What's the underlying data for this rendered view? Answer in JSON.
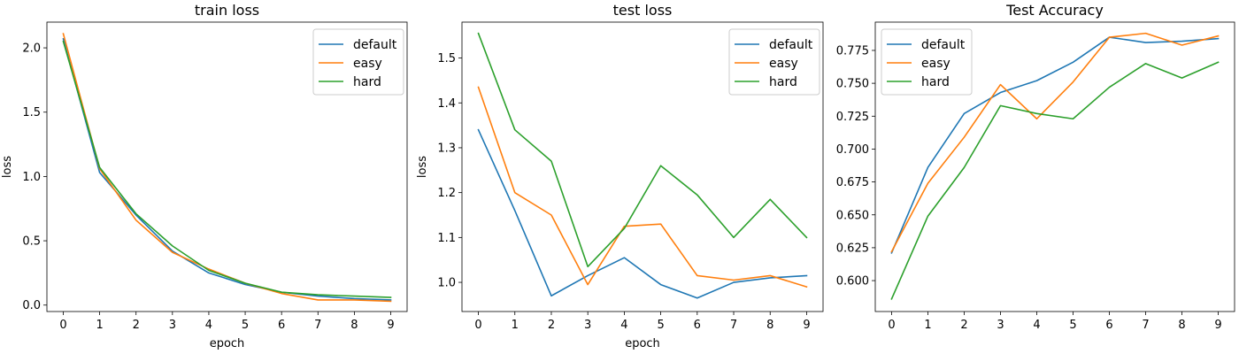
{
  "figure": {
    "colors": {
      "default": "#1f77b4",
      "easy": "#ff7f0e",
      "hard": "#2ca02c"
    }
  },
  "chart_data": [
    {
      "type": "line",
      "title": "train loss",
      "xlabel": "epoch",
      "ylabel": "loss",
      "x": [
        0,
        1,
        2,
        3,
        4,
        5,
        6,
        7,
        8,
        9
      ],
      "xlim": [
        -0.45,
        9.45
      ],
      "ylim": [
        -0.05,
        2.2
      ],
      "xticks": [
        0,
        1,
        2,
        3,
        4,
        5,
        6,
        7,
        8,
        9
      ],
      "yticks": [
        0.0,
        0.5,
        1.0,
        1.5,
        2.0
      ],
      "ytick_labels": [
        "0.0",
        "0.5",
        "1.0",
        "1.5",
        "2.0"
      ],
      "legend_position": "upper right",
      "series": [
        {
          "name": "default",
          "color": "#1f77b4",
          "values": [
            2.07,
            1.03,
            0.7,
            0.42,
            0.25,
            0.16,
            0.1,
            0.07,
            0.05,
            0.04
          ]
        },
        {
          "name": "easy",
          "color": "#ff7f0e",
          "values": [
            2.11,
            1.06,
            0.66,
            0.41,
            0.28,
            0.17,
            0.09,
            0.04,
            0.04,
            0.03
          ]
        },
        {
          "name": "hard",
          "color": "#2ca02c",
          "values": [
            2.05,
            1.07,
            0.71,
            0.46,
            0.27,
            0.17,
            0.1,
            0.08,
            0.07,
            0.06
          ]
        }
      ]
    },
    {
      "type": "line",
      "title": "test loss",
      "xlabel": "epoch",
      "ylabel": "loss",
      "x": [
        0,
        1,
        2,
        3,
        4,
        5,
        6,
        7,
        8,
        9
      ],
      "xlim": [
        -0.45,
        9.45
      ],
      "ylim": [
        0.935,
        1.58
      ],
      "xticks": [
        0,
        1,
        2,
        3,
        4,
        5,
        6,
        7,
        8,
        9
      ],
      "yticks": [
        1.0,
        1.1,
        1.2,
        1.3,
        1.4,
        1.5
      ],
      "ytick_labels": [
        "1.0",
        "1.1",
        "1.2",
        "1.3",
        "1.4",
        "1.5"
      ],
      "legend_position": "upper right",
      "series": [
        {
          "name": "default",
          "color": "#1f77b4",
          "values": [
            1.34,
            1.16,
            0.97,
            1.015,
            1.055,
            0.995,
            0.965,
            1.0,
            1.01,
            1.015
          ]
        },
        {
          "name": "easy",
          "color": "#ff7f0e",
          "values": [
            1.435,
            1.2,
            1.15,
            0.995,
            1.125,
            1.13,
            1.015,
            1.005,
            1.015,
            0.99
          ]
        },
        {
          "name": "hard",
          "color": "#2ca02c",
          "values": [
            1.555,
            1.34,
            1.27,
            1.035,
            1.12,
            1.26,
            1.195,
            1.1,
            1.185,
            1.1
          ]
        }
      ]
    },
    {
      "type": "line",
      "title": "Test Accuracy",
      "xlabel": "",
      "ylabel": "",
      "x": [
        0,
        1,
        2,
        3,
        4,
        5,
        6,
        7,
        8,
        9
      ],
      "xlim": [
        -0.45,
        9.45
      ],
      "ylim": [
        0.5765,
        0.7965
      ],
      "xticks": [
        0,
        1,
        2,
        3,
        4,
        5,
        6,
        7,
        8,
        9
      ],
      "yticks": [
        0.6,
        0.625,
        0.65,
        0.675,
        0.7,
        0.725,
        0.75,
        0.775
      ],
      "ytick_labels": [
        "0.600",
        "0.625",
        "0.650",
        "0.675",
        "0.700",
        "0.725",
        "0.750",
        "0.775"
      ],
      "legend_position": "upper left",
      "series": [
        {
          "name": "default",
          "color": "#1f77b4",
          "values": [
            0.621,
            0.686,
            0.727,
            0.743,
            0.752,
            0.766,
            0.785,
            0.781,
            0.782,
            0.784
          ]
        },
        {
          "name": "easy",
          "color": "#ff7f0e",
          "values": [
            0.622,
            0.674,
            0.709,
            0.749,
            0.723,
            0.751,
            0.785,
            0.788,
            0.779,
            0.786
          ]
        },
        {
          "name": "hard",
          "color": "#2ca02c",
          "values": [
            0.586,
            0.649,
            0.686,
            0.733,
            0.727,
            0.723,
            0.747,
            0.765,
            0.754,
            0.766
          ]
        }
      ]
    }
  ]
}
